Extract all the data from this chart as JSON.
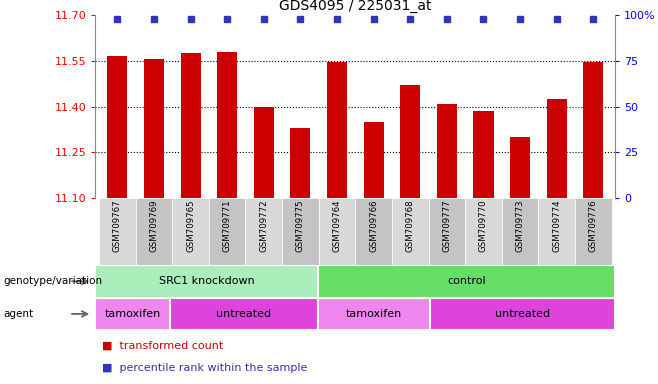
{
  "title": "GDS4095 / 225031_at",
  "samples": [
    "GSM709767",
    "GSM709769",
    "GSM709765",
    "GSM709771",
    "GSM709772",
    "GSM709775",
    "GSM709764",
    "GSM709766",
    "GSM709768",
    "GSM709777",
    "GSM709770",
    "GSM709773",
    "GSM709774",
    "GSM709776"
  ],
  "bar_values": [
    11.565,
    11.555,
    11.577,
    11.578,
    11.4,
    11.328,
    11.547,
    11.348,
    11.47,
    11.41,
    11.385,
    11.3,
    11.425,
    11.547
  ],
  "ylim_left": [
    11.1,
    11.7
  ],
  "ylim_right": [
    0,
    100
  ],
  "yticks_left": [
    11.1,
    11.25,
    11.4,
    11.55,
    11.7
  ],
  "yticks_right": [
    0,
    25,
    50,
    75,
    100
  ],
  "hlines": [
    11.25,
    11.4,
    11.55
  ],
  "bar_color": "#cc0000",
  "dot_color": "#3333bb",
  "genotype_groups": [
    {
      "label": "SRC1 knockdown",
      "start": 0,
      "end": 6,
      "color": "#aaeebb"
    },
    {
      "label": "control",
      "start": 6,
      "end": 14,
      "color": "#66dd66"
    }
  ],
  "agent_groups": [
    {
      "label": "tamoxifen",
      "start": 0,
      "end": 2,
      "color": "#ee88ee"
    },
    {
      "label": "untreated",
      "start": 2,
      "end": 6,
      "color": "#dd44dd"
    },
    {
      "label": "tamoxifen",
      "start": 6,
      "end": 9,
      "color": "#ee88ee"
    },
    {
      "label": "untreated",
      "start": 9,
      "end": 14,
      "color": "#dd44dd"
    }
  ],
  "legend": [
    {
      "label": "transformed count",
      "color": "#cc0000"
    },
    {
      "label": "percentile rank within the sample",
      "color": "#3333bb"
    }
  ],
  "fig_width": 6.58,
  "fig_height": 3.84,
  "dpi": 100
}
